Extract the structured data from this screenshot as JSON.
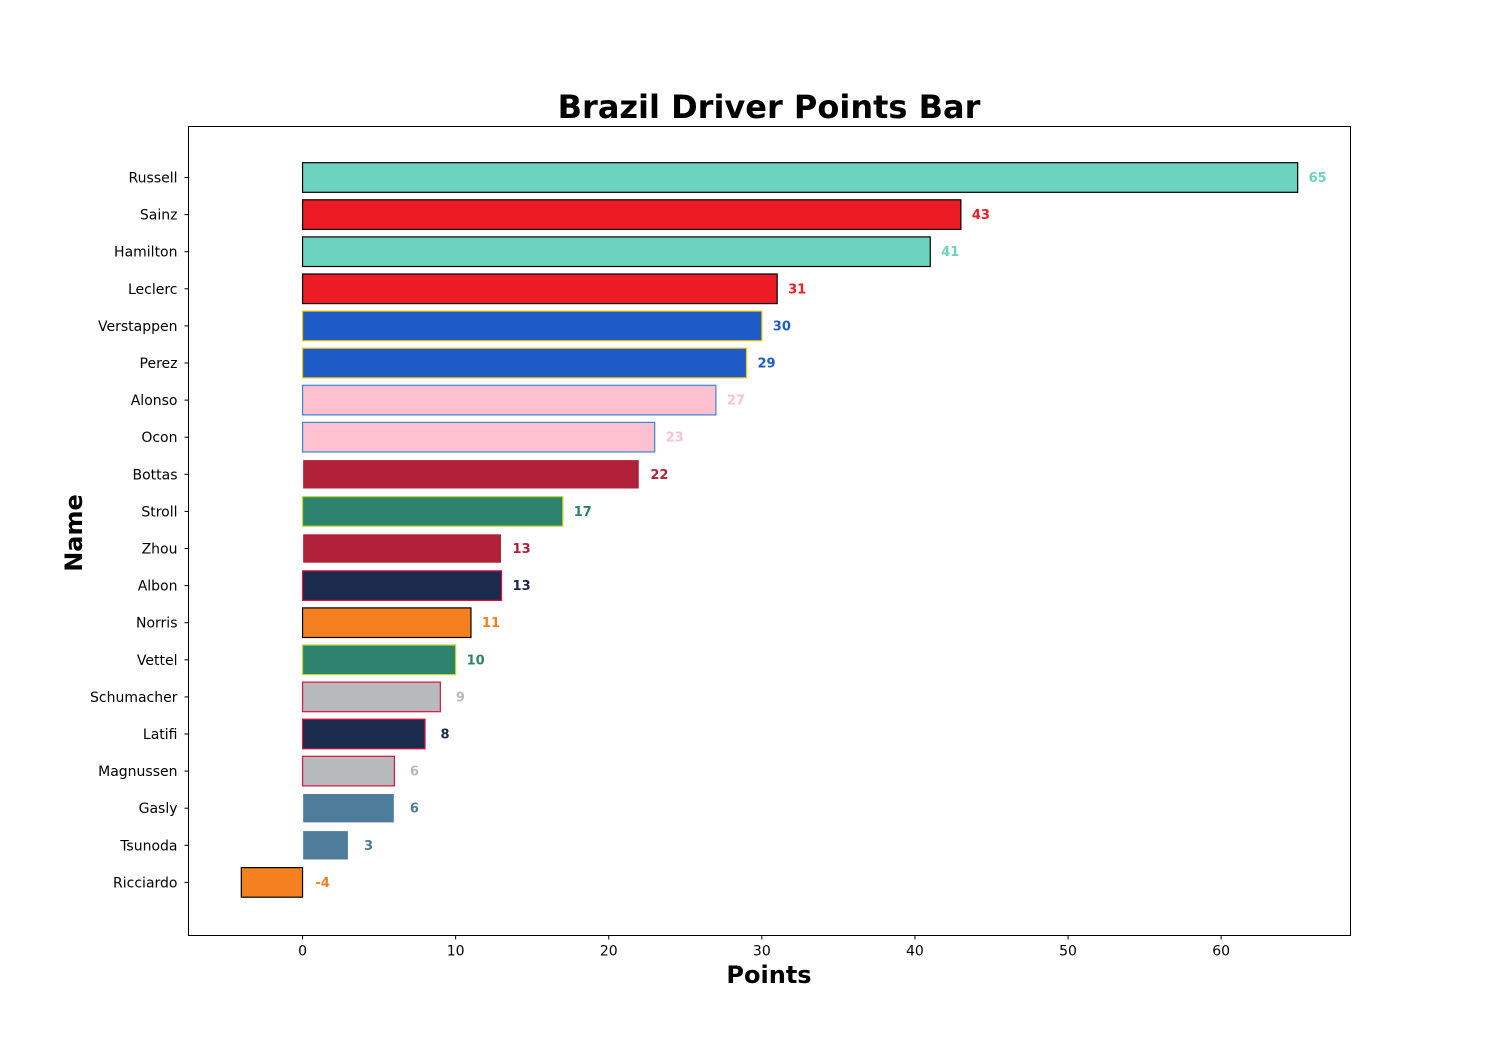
{
  "chart_data": {
    "type": "bar",
    "orientation": "horizontal",
    "title": "Brazil Driver Points Bar",
    "xlabel": "Points",
    "ylabel": "Name",
    "xlim": [
      -7.45,
      68.45
    ],
    "xticks": [
      0,
      10,
      20,
      30,
      40,
      50,
      60
    ],
    "grid": false,
    "categories": [
      "Russell",
      "Sainz",
      "Hamilton",
      "Leclerc",
      "Verstappen",
      "Perez",
      "Alonso",
      "Ocon",
      "Bottas",
      "Stroll",
      "Zhou",
      "Albon",
      "Norris",
      "Vettel",
      "Schumacher",
      "Latifi",
      "Magnussen",
      "Gasly",
      "Tsunoda",
      "Ricciardo"
    ],
    "values": [
      65,
      43,
      41,
      31,
      30,
      29,
      27,
      23,
      22,
      17,
      13,
      13,
      11,
      10,
      9,
      8,
      6,
      6,
      3,
      -4
    ],
    "fill_colors": [
      "#6cd3bf",
      "#ed1c24",
      "#6cd3bf",
      "#ed1c24",
      "#1e5bc6",
      "#1e5bc6",
      "#ffc0cf",
      "#ffc0cf",
      "#b12039",
      "#2d826d",
      "#b12039",
      "#1b2b4d",
      "#f58020",
      "#2d826d",
      "#b6babd",
      "#1b2b4d",
      "#b6babd",
      "#4e7c9b",
      "#4e7c9b",
      "#f58020"
    ],
    "edge_colors": [
      "#000000",
      "#000000",
      "#000000",
      "#000000",
      "#f0c808",
      "#f0c808",
      "#3a86d4",
      "#3a86d4",
      "#ffffff",
      "#c6d82a",
      "#ffffff",
      "#e01040",
      "#000000",
      "#c6d82a",
      "#e01040",
      "#e01040",
      "#e01040",
      "#ffffff",
      "#ffffff",
      "#000000"
    ]
  }
}
